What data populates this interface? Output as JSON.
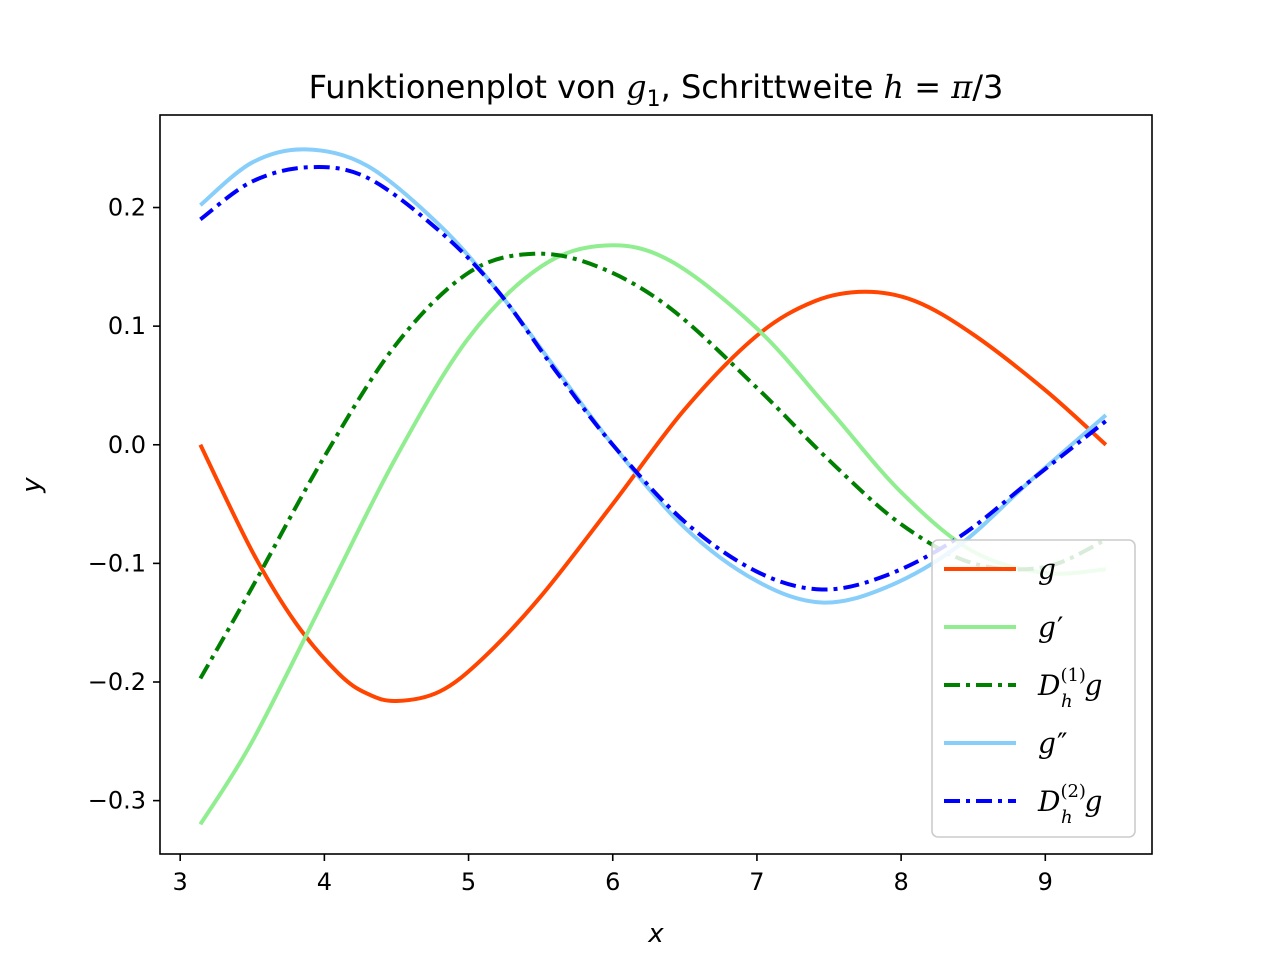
{
  "chart_data": {
    "type": "line",
    "title": "Funktionenplot von g1, Schrittweite h = π/3",
    "title_parts": {
      "prefix": "Funktionenplot von ",
      "func": "g",
      "func_sub": "1",
      "middle": ", Schrittweite ",
      "h": "h",
      "eq": " = ",
      "pi": "π",
      "rest": "/3"
    },
    "xlabel": "x",
    "ylabel": "y",
    "xlim": [
      2.86,
      9.74
    ],
    "ylim": [
      -0.345,
      0.278
    ],
    "xticks": [
      3,
      4,
      5,
      6,
      7,
      8,
      9
    ],
    "xtick_labels": [
      "3",
      "4",
      "5",
      "6",
      "7",
      "8",
      "9"
    ],
    "yticks": [
      -0.3,
      -0.2,
      -0.1,
      0.0,
      0.1,
      0.2
    ],
    "ytick_labels": [
      "−0.3",
      "−0.2",
      "−0.1",
      "0.0",
      "0.1",
      "0.2"
    ],
    "legend_position": "lower-right",
    "grid": false,
    "series": [
      {
        "name": "g",
        "legend": {
          "base": "g",
          "sup": "",
          "prime": ""
        },
        "color": "#ff4500",
        "dash": "solid",
        "width": 4,
        "x": [
          3.14,
          3.5,
          3.8,
          4.1,
          4.3,
          4.5,
          4.8,
          5.1,
          5.5,
          6.0,
          6.5,
          7.0,
          7.4,
          7.75,
          8.1,
          8.5,
          9.0,
          9.42
        ],
        "y": [
          0.0,
          -0.09,
          -0.15,
          -0.193,
          -0.21,
          -0.216,
          -0.208,
          -0.18,
          -0.128,
          -0.05,
          0.03,
          0.092,
          0.121,
          0.129,
          0.121,
          0.093,
          0.046,
          0.0
        ]
      },
      {
        "name": "g′",
        "legend": {
          "base": "g",
          "sup": "",
          "prime": "′"
        },
        "color": "#90ee90",
        "dash": "solid",
        "width": 4,
        "x": [
          3.14,
          3.5,
          4.0,
          4.5,
          5.0,
          5.5,
          5.95,
          6.4,
          7.0,
          7.5,
          8.0,
          8.5,
          9.0,
          9.42
        ],
        "y": [
          -0.32,
          -0.25,
          -0.13,
          -0.01,
          0.09,
          0.15,
          0.168,
          0.155,
          0.098,
          0.03,
          -0.04,
          -0.09,
          -0.108,
          -0.105
        ]
      },
      {
        "name": "Dh(1)g",
        "legend": {
          "base": "D",
          "sub": "h",
          "sup": "(1)",
          "tail": "g"
        },
        "color": "#008000",
        "dash": "dashdot",
        "width": 4,
        "x": [
          3.14,
          3.5,
          4.0,
          4.5,
          5.0,
          5.45,
          5.9,
          6.4,
          7.0,
          7.5,
          8.0,
          8.5,
          9.0,
          9.42
        ],
        "y": [
          -0.197,
          -0.12,
          -0.01,
          0.085,
          0.145,
          0.161,
          0.15,
          0.115,
          0.048,
          -0.013,
          -0.067,
          -0.1,
          -0.103,
          -0.08
        ]
      },
      {
        "name": "g″",
        "legend": {
          "base": "g",
          "sup": "",
          "prime": "″"
        },
        "color": "#87cefa",
        "dash": "solid",
        "width": 4,
        "x": [
          3.14,
          3.5,
          3.87,
          4.3,
          4.8,
          5.2,
          5.6,
          6.0,
          6.5,
          7.0,
          7.45,
          7.9,
          8.4,
          8.9,
          9.42
        ],
        "y": [
          0.202,
          0.238,
          0.249,
          0.235,
          0.185,
          0.13,
          0.065,
          0.0,
          -0.07,
          -0.115,
          -0.133,
          -0.12,
          -0.085,
          -0.03,
          0.025
        ]
      },
      {
        "name": "Dh(2)g",
        "legend": {
          "base": "D",
          "sub": "h",
          "sup": "(2)",
          "tail": "g"
        },
        "color": "#0000ff",
        "dash": "dashdot",
        "width": 4,
        "x": [
          3.14,
          3.5,
          3.9,
          4.3,
          4.8,
          5.2,
          5.6,
          6.0,
          6.5,
          7.0,
          7.45,
          7.9,
          8.4,
          8.9,
          9.42
        ],
        "y": [
          0.19,
          0.222,
          0.234,
          0.225,
          0.18,
          0.13,
          0.063,
          0.0,
          -0.065,
          -0.107,
          -0.122,
          -0.11,
          -0.078,
          -0.03,
          0.02
        ]
      }
    ]
  }
}
